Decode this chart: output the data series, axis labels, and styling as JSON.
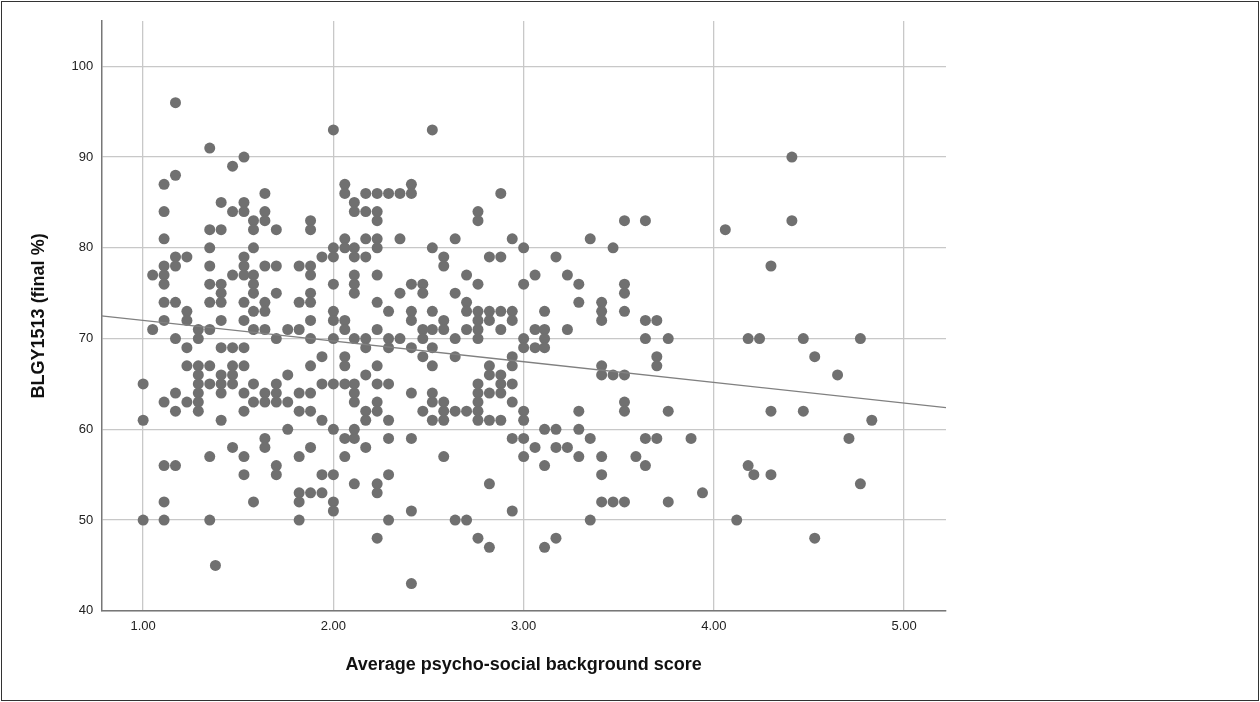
{
  "chart_data": {
    "type": "scatter",
    "xlabel": "Average psycho-social background score",
    "ylabel": "BLGY1513 (final %)",
    "xlim": [
      0.78,
      5.22
    ],
    "ylim": [
      40,
      105
    ],
    "xticks": [
      {
        "value": 1,
        "label": "1.00"
      },
      {
        "value": 2,
        "label": "2.00"
      },
      {
        "value": 3,
        "label": "3.00"
      },
      {
        "value": 4,
        "label": "4.00"
      },
      {
        "value": 5,
        "label": "5.00"
      }
    ],
    "yticks": [
      40,
      50,
      60,
      70,
      80,
      90,
      100
    ],
    "grid": true,
    "legend": false,
    "marker": "circle",
    "series": [
      {
        "color": "#707070",
        "x": [
          1.0,
          1.0,
          1.0,
          1.05,
          1.05,
          1.11,
          1.11,
          1.11,
          1.11,
          1.11,
          1.11,
          1.11,
          1.11,
          1.11,
          1.11,
          1.11,
          1.11,
          1.17,
          1.17,
          1.17,
          1.17,
          1.17,
          1.17,
          1.17,
          1.17,
          1.17,
          1.23,
          1.23,
          1.23,
          1.23,
          1.23,
          1.23,
          1.29,
          1.29,
          1.29,
          1.29,
          1.29,
          1.29,
          1.29,
          1.29,
          1.35,
          1.35,
          1.35,
          1.35,
          1.35,
          1.35,
          1.35,
          1.35,
          1.35,
          1.35,
          1.35,
          1.38,
          1.41,
          1.41,
          1.41,
          1.41,
          1.41,
          1.41,
          1.41,
          1.41,
          1.41,
          1.41,
          1.41,
          1.47,
          1.47,
          1.47,
          1.47,
          1.47,
          1.47,
          1.47,
          1.47,
          1.53,
          1.53,
          1.53,
          1.53,
          1.53,
          1.53,
          1.53,
          1.53,
          1.53,
          1.53,
          1.53,
          1.53,
          1.53,
          1.53,
          1.58,
          1.58,
          1.58,
          1.58,
          1.58,
          1.58,
          1.58,
          1.58,
          1.58,
          1.58,
          1.58,
          1.64,
          1.64,
          1.64,
          1.64,
          1.64,
          1.64,
          1.64,
          1.64,
          1.64,
          1.64,
          1.64,
          1.7,
          1.7,
          1.7,
          1.7,
          1.7,
          1.7,
          1.7,
          1.7,
          1.7,
          1.76,
          1.76,
          1.76,
          1.76,
          1.82,
          1.82,
          1.82,
          1.82,
          1.82,
          1.82,
          1.82,
          1.82,
          1.82,
          1.88,
          1.88,
          1.88,
          1.88,
          1.88,
          1.88,
          1.88,
          1.88,
          1.88,
          1.88,
          1.88,
          1.88,
          1.88,
          1.94,
          1.94,
          1.94,
          1.94,
          1.94,
          1.94,
          2.0,
          2.0,
          2.0,
          2.0,
          2.0,
          2.0,
          2.0,
          2.0,
          2.0,
          2.0,
          2.0,
          2.0,
          2.06,
          2.06,
          2.06,
          2.06,
          2.06,
          2.06,
          2.06,
          2.06,
          2.06,
          2.06,
          2.06,
          2.11,
          2.11,
          2.11,
          2.11,
          2.11,
          2.11,
          2.11,
          2.11,
          2.11,
          2.11,
          2.11,
          2.11,
          2.11,
          2.11,
          2.17,
          2.17,
          2.17,
          2.17,
          2.17,
          2.17,
          2.17,
          2.17,
          2.17,
          2.17,
          2.23,
          2.23,
          2.23,
          2.23,
          2.23,
          2.23,
          2.23,
          2.23,
          2.23,
          2.23,
          2.23,
          2.23,
          2.23,
          2.23,
          2.23,
          2.29,
          2.29,
          2.29,
          2.29,
          2.29,
          2.29,
          2.29,
          2.29,
          2.29,
          2.35,
          2.35,
          2.35,
          2.35,
          2.41,
          2.41,
          2.41,
          2.41,
          2.41,
          2.41,
          2.41,
          2.41,
          2.41,
          2.41,
          2.47,
          2.47,
          2.47,
          2.47,
          2.47,
          2.47,
          2.52,
          2.52,
          2.52,
          2.52,
          2.52,
          2.52,
          2.52,
          2.52,
          2.52,
          2.58,
          2.58,
          2.58,
          2.58,
          2.58,
          2.58,
          2.58,
          2.58,
          2.64,
          2.64,
          2.64,
          2.64,
          2.64,
          2.64,
          2.7,
          2.7,
          2.7,
          2.7,
          2.7,
          2.7,
          2.76,
          2.76,
          2.76,
          2.76,
          2.76,
          2.76,
          2.76,
          2.76,
          2.76,
          2.76,
          2.76,
          2.76,
          2.76,
          2.82,
          2.82,
          2.82,
          2.82,
          2.82,
          2.82,
          2.82,
          2.82,
          2.82,
          2.88,
          2.88,
          2.88,
          2.88,
          2.88,
          2.88,
          2.88,
          2.88,
          2.94,
          2.94,
          2.94,
          2.94,
          2.94,
          2.94,
          2.94,
          2.94,
          2.94,
          3.0,
          3.0,
          3.0,
          3.0,
          3.0,
          3.0,
          3.0,
          3.0,
          3.06,
          3.06,
          3.06,
          3.06,
          3.11,
          3.11,
          3.11,
          3.11,
          3.11,
          3.11,
          3.11,
          3.17,
          3.17,
          3.17,
          3.17,
          3.23,
          3.23,
          3.23,
          3.29,
          3.29,
          3.29,
          3.29,
          3.29,
          3.35,
          3.35,
          3.35,
          3.41,
          3.41,
          3.41,
          3.41,
          3.41,
          3.41,
          3.41,
          3.41,
          3.47,
          3.47,
          3.47,
          3.53,
          3.53,
          3.53,
          3.53,
          3.53,
          3.53,
          3.53,
          3.53,
          3.59,
          3.64,
          3.64,
          3.64,
          3.64,
          3.64,
          3.7,
          3.7,
          3.7,
          3.7,
          3.76,
          3.76,
          3.76,
          3.88,
          3.94,
          4.06,
          4.12,
          4.18,
          4.18,
          4.21,
          4.24,
          4.3,
          4.3,
          4.3,
          4.41,
          4.41,
          4.47,
          4.47,
          4.53,
          4.53,
          4.65,
          4.71,
          4.77,
          4.77,
          4.83
        ],
        "values": [
          65,
          61,
          50,
          77,
          71,
          87,
          84,
          81,
          78,
          77,
          76,
          74,
          72,
          63,
          56,
          52,
          50,
          96,
          88,
          79,
          78,
          74,
          70,
          64,
          62,
          56,
          79,
          73,
          72,
          69,
          67,
          63,
          71,
          70,
          67,
          66,
          65,
          64,
          63,
          62,
          91,
          82,
          80,
          78,
          76,
          74,
          71,
          67,
          65,
          57,
          50,
          45,
          85,
          82,
          76,
          75,
          74,
          72,
          69,
          66,
          65,
          64,
          61,
          89,
          84,
          77,
          69,
          67,
          66,
          65,
          58,
          90,
          85,
          84,
          79,
          78,
          77,
          74,
          72,
          69,
          67,
          64,
          62,
          57,
          55,
          83,
          82,
          80,
          77,
          76,
          75,
          73,
          71,
          65,
          63,
          52,
          86,
          84,
          83,
          78,
          74,
          73,
          71,
          64,
          63,
          59,
          58,
          82,
          78,
          75,
          70,
          65,
          64,
          63,
          56,
          55,
          71,
          66,
          63,
          60,
          78,
          74,
          71,
          64,
          62,
          57,
          53,
          52,
          50,
          83,
          82,
          78,
          77,
          75,
          74,
          72,
          70,
          67,
          64,
          62,
          58,
          53,
          79,
          68,
          65,
          61,
          55,
          53,
          93,
          80,
          79,
          76,
          73,
          72,
          70,
          65,
          60,
          55,
          52,
          51,
          87,
          86,
          81,
          80,
          72,
          71,
          68,
          67,
          65,
          59,
          57,
          85,
          84,
          80,
          79,
          77,
          76,
          75,
          70,
          65,
          64,
          63,
          60,
          59,
          54,
          86,
          84,
          81,
          79,
          70,
          69,
          66,
          62,
          61,
          58,
          86,
          84,
          83,
          81,
          80,
          77,
          74,
          71,
          67,
          65,
          63,
          62,
          54,
          53,
          48,
          86,
          73,
          70,
          69,
          65,
          61,
          59,
          55,
          50,
          86,
          81,
          75,
          70,
          87,
          86,
          76,
          73,
          72,
          69,
          64,
          59,
          51,
          43,
          76,
          75,
          71,
          70,
          68,
          62,
          93,
          80,
          73,
          71,
          69,
          67,
          64,
          63,
          61,
          79,
          78,
          72,
          71,
          63,
          62,
          61,
          57,
          81,
          75,
          70,
          68,
          62,
          50,
          77,
          74,
          73,
          71,
          62,
          50,
          84,
          83,
          76,
          73,
          72,
          71,
          70,
          65,
          64,
          63,
          62,
          61,
          48,
          79,
          73,
          72,
          67,
          66,
          64,
          61,
          54,
          47,
          86,
          79,
          73,
          71,
          66,
          65,
          64,
          61,
          81,
          73,
          72,
          68,
          67,
          65,
          63,
          59,
          51,
          80,
          76,
          70,
          69,
          62,
          61,
          59,
          57,
          77,
          71,
          69,
          58,
          73,
          71,
          70,
          69,
          60,
          56,
          47,
          79,
          60,
          58,
          48,
          77,
          71,
          58,
          76,
          74,
          62,
          60,
          57,
          81,
          59,
          50,
          74,
          73,
          72,
          67,
          66,
          57,
          55,
          52,
          80,
          66,
          52,
          83,
          76,
          75,
          73,
          66,
          63,
          62,
          52,
          57,
          83,
          72,
          70,
          59,
          56,
          72,
          68,
          67,
          59,
          70,
          62,
          52,
          59,
          53,
          82,
          50,
          70,
          56,
          55,
          70,
          78,
          62,
          55,
          90,
          83,
          70,
          62,
          68,
          48,
          66,
          59,
          70,
          54,
          61
        ]
      },
      {
        "type": "line",
        "color": "#808080",
        "marker": "none",
        "x": [
          0.78,
          5.22
        ],
        "values": [
          72.5,
          62.4
        ]
      }
    ]
  }
}
